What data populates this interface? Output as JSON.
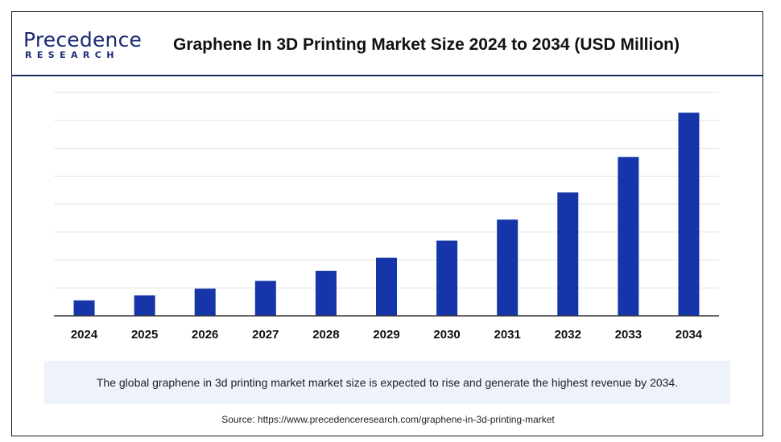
{
  "brand": {
    "name": "Precedence",
    "sub": "RESEARCH"
  },
  "header": {
    "title": "Graphene In 3D Printing Market Size 2024 to 2034 (USD Million)"
  },
  "note": "The global graphene in 3d printing market market size is expected to rise and generate the highest revenue by 2034.",
  "source": "Source: https://www.precedenceresearch.com/graphene-in-3d-printing-market",
  "colors": {
    "bar": "#1535a8",
    "grid": "#e3e3e3",
    "axis": "#333333",
    "brand": "#1b2a73"
  },
  "chart_data": {
    "type": "bar",
    "categories": [
      "2024",
      "2025",
      "2026",
      "2027",
      "2028",
      "2029",
      "2030",
      "2031",
      "2032",
      "2033",
      "2034"
    ],
    "values": [
      5.8,
      7.7,
      10.2,
      13.1,
      16.9,
      21.8,
      28.2,
      36.1,
      46.3,
      59.6,
      76.2
    ],
    "ylim": [
      0,
      82
    ],
    "grid": true,
    "legend": "none"
  }
}
